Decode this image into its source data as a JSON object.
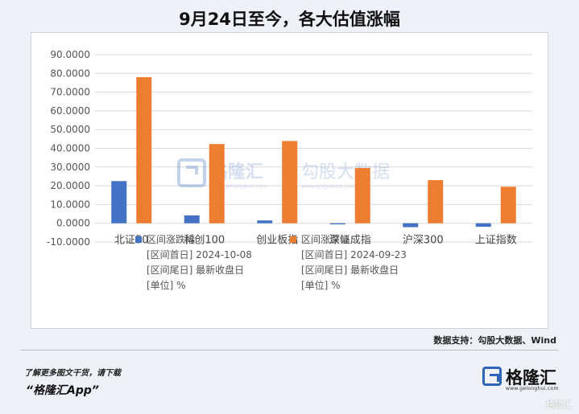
{
  "header": {
    "title": "9月24日至今，各大估值涨幅"
  },
  "colors": {
    "series1": "#4472c4",
    "series2": "#ed7d31",
    "grid": "#d9d9d9"
  },
  "chart_data": {
    "type": "bar",
    "title": "",
    "xlabel": "",
    "ylabel": "",
    "ylim": [
      -10,
      90
    ],
    "yticks": [
      "90.0000",
      "80.0000",
      "70.0000",
      "60.0000",
      "50.0000",
      "40.0000",
      "30.0000",
      "20.0000",
      "10.0000",
      "0.0000",
      "-10.0000"
    ],
    "grid": true,
    "legend_placement": "bottom",
    "categories": [
      "北证50",
      "科创100",
      "创业板指",
      "深证成指",
      "沪深300",
      "上证指数"
    ],
    "series": [
      {
        "name": "区间涨跌幅",
        "values": [
          22.5,
          4.2,
          1.5,
          -0.6,
          -2.1,
          -1.9
        ],
        "legend_lines": [
          "[区间首日] 2024-10-08",
          "[区间尾日] 最新收盘日",
          "[单位] %"
        ]
      },
      {
        "name": "区间涨跌幅",
        "values": [
          78.0,
          42.3,
          43.9,
          29.5,
          23.0,
          19.5
        ],
        "legend_lines": [
          "[区间首日] 2024-09-23",
          "[区间尾日] 最新收盘日",
          "[单位] %"
        ]
      }
    ]
  },
  "watermark": {
    "brand": "格隆汇",
    "brand_url": "www.gelonghui.com",
    "partner": "勾股大数据",
    "partner_url": "www.gogudata.com"
  },
  "source": "数据支持：勾股大数据、Wind",
  "footer": {
    "promo_line1": "了解更多图文干货，请下载",
    "promo_line2": "“格隆汇App”",
    "brand_name": "格隆汇",
    "brand_url": "www.gelonghui.com",
    "corner_watermark": "格隆汇"
  }
}
